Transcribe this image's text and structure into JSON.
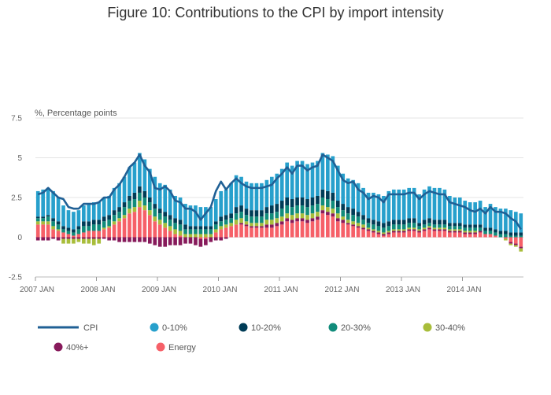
{
  "chart_data": {
    "type": "bar",
    "title": "Figure 10: Contributions to the CPI by import intensity",
    "ylabel": "%, Percentage points",
    "ylim": [
      -2.5,
      7.5
    ],
    "yticks": [
      -2.5,
      0,
      2.5,
      5,
      7.5
    ],
    "ytick_labels": [
      "-2.5",
      "0",
      "2.5",
      "5",
      "7.5"
    ],
    "xtick_labels": [
      "2007 JAN",
      "2008 JAN",
      "2009 JAN",
      "2010 JAN",
      "2011 JAN",
      "2012 JAN",
      "2013 JAN",
      "2014 JAN"
    ],
    "start": "2007 JAN",
    "frequency": "monthly",
    "stacked": true,
    "legend": [
      {
        "name": "CPI",
        "kind": "line",
        "color": "#206095"
      },
      {
        "name": "0-10%",
        "kind": "dot",
        "color": "#27a0cc"
      },
      {
        "name": "10-20%",
        "kind": "dot",
        "color": "#003c57"
      },
      {
        "name": "20-30%",
        "kind": "dot",
        "color": "#118c7b"
      },
      {
        "name": "30-40%",
        "kind": "dot",
        "color": "#a8bd3a"
      },
      {
        "name": "40%+",
        "kind": "dot",
        "color": "#871a5b"
      },
      {
        "name": "Energy",
        "kind": "dot",
        "color": "#f66068"
      }
    ],
    "line": {
      "name": "CPI",
      "color": "#206095",
      "values": [
        2.7,
        2.8,
        3.1,
        2.8,
        2.5,
        2.4,
        1.9,
        1.8,
        1.8,
        2.1,
        2.1,
        2.1,
        2.2,
        2.5,
        2.5,
        3.0,
        3.3,
        3.8,
        4.4,
        4.7,
        5.2,
        4.5,
        4.1,
        3.1,
        3.0,
        3.2,
        2.9,
        2.3,
        2.2,
        1.8,
        1.8,
        1.6,
        1.1,
        1.5,
        1.9,
        2.9,
        3.5,
        3.0,
        3.4,
        3.7,
        3.4,
        3.2,
        3.1,
        3.1,
        3.1,
        3.2,
        3.3,
        3.7,
        4.0,
        4.4,
        4.0,
        4.5,
        4.5,
        4.2,
        4.4,
        4.5,
        5.2,
        5.0,
        4.8,
        4.2,
        3.6,
        3.4,
        3.5,
        3.0,
        2.8,
        2.4,
        2.6,
        2.5,
        2.2,
        2.7,
        2.7,
        2.7,
        2.7,
        2.8,
        2.8,
        2.4,
        2.7,
        2.9,
        2.8,
        2.7,
        2.7,
        2.2,
        2.1,
        2.0,
        1.9,
        1.7,
        1.6,
        1.8,
        1.5,
        1.9,
        1.6,
        1.6,
        1.5,
        1.2,
        1.0,
        0.5
      ]
    },
    "series": [
      {
        "name": "Energy",
        "color": "#f66068",
        "values": [
          0.8,
          0.8,
          0.8,
          0.5,
          0.4,
          0.3,
          0.2,
          0.1,
          0.2,
          0.3,
          0.4,
          0.4,
          0.4,
          0.5,
          0.6,
          0.8,
          1.0,
          1.2,
          1.5,
          1.6,
          1.9,
          1.7,
          1.4,
          1.0,
          0.8,
          0.6,
          0.4,
          0.2,
          0.1,
          0.0,
          0.0,
          0.0,
          -0.1,
          -0.1,
          0.0,
          0.3,
          0.5,
          0.6,
          0.7,
          0.8,
          0.8,
          0.7,
          0.6,
          0.6,
          0.6,
          0.6,
          0.6,
          0.7,
          0.8,
          1.0,
          0.9,
          1.0,
          1.0,
          0.9,
          1.0,
          1.1,
          1.5,
          1.4,
          1.3,
          1.0,
          0.9,
          0.8,
          0.7,
          0.6,
          0.5,
          0.4,
          0.3,
          0.2,
          0.1,
          0.2,
          0.3,
          0.3,
          0.3,
          0.4,
          0.4,
          0.3,
          0.4,
          0.5,
          0.4,
          0.4,
          0.4,
          0.3,
          0.3,
          0.3,
          0.2,
          0.2,
          0.2,
          0.3,
          0.2,
          0.2,
          0.1,
          0.0,
          -0.1,
          -0.3,
          -0.4,
          -0.6
        ]
      },
      {
        "name": "40%+",
        "color": "#871a5b",
        "values": [
          -0.2,
          -0.2,
          -0.2,
          -0.1,
          -0.2,
          -0.1,
          -0.1,
          -0.1,
          -0.1,
          -0.1,
          -0.1,
          -0.1,
          -0.1,
          -0.1,
          -0.2,
          -0.2,
          -0.3,
          -0.3,
          -0.3,
          -0.3,
          -0.3,
          -0.3,
          -0.4,
          -0.5,
          -0.6,
          -0.6,
          -0.5,
          -0.5,
          -0.5,
          -0.4,
          -0.4,
          -0.5,
          -0.5,
          -0.4,
          -0.3,
          -0.2,
          -0.2,
          -0.1,
          0.0,
          0.0,
          0.1,
          0.1,
          0.1,
          0.1,
          0.1,
          0.2,
          0.2,
          0.2,
          0.2,
          0.2,
          0.2,
          0.2,
          0.2,
          0.2,
          0.2,
          0.2,
          0.2,
          0.2,
          0.2,
          0.2,
          0.2,
          0.1,
          0.1,
          0.1,
          0.1,
          0.1,
          0.1,
          0.1,
          0.1,
          0.1,
          0.1,
          0.1,
          0.1,
          0.1,
          0.1,
          0.1,
          0.1,
          0.1,
          0.1,
          0.1,
          0.1,
          0.1,
          0.1,
          0.1,
          0.1,
          0.1,
          0.1,
          0.1,
          0.0,
          0.0,
          0.0,
          0.0,
          0.0,
          -0.1,
          -0.1,
          -0.1
        ]
      },
      {
        "name": "30-40%",
        "color": "#a8bd3a",
        "values": [
          0.2,
          0.2,
          0.2,
          0.2,
          0.1,
          -0.3,
          -0.3,
          -0.3,
          -0.2,
          -0.3,
          -0.3,
          -0.4,
          -0.3,
          0.1,
          0.1,
          0.2,
          0.2,
          0.2,
          0.3,
          0.3,
          0.4,
          0.3,
          0.3,
          0.3,
          0.3,
          0.3,
          0.3,
          0.3,
          0.3,
          0.2,
          0.2,
          0.2,
          0.2,
          0.2,
          0.2,
          0.2,
          0.2,
          0.2,
          0.2,
          0.3,
          0.3,
          0.2,
          0.2,
          0.2,
          0.2,
          0.3,
          0.3,
          0.3,
          0.3,
          0.3,
          0.3,
          0.3,
          0.3,
          0.3,
          0.3,
          0.3,
          0.3,
          0.3,
          0.3,
          0.3,
          0.2,
          0.2,
          0.2,
          0.2,
          0.2,
          0.1,
          0.1,
          0.1,
          0.1,
          0.1,
          0.1,
          0.1,
          0.1,
          0.1,
          0.1,
          0.1,
          0.1,
          0.1,
          0.1,
          0.1,
          0.1,
          0.1,
          0.1,
          0.1,
          0.1,
          0.1,
          0.1,
          0.0,
          0.0,
          0.0,
          0.0,
          0.0,
          -0.1,
          -0.1,
          -0.1,
          -0.2
        ]
      },
      {
        "name": "20-30%",
        "color": "#118c7b",
        "values": [
          0.2,
          0.2,
          0.3,
          0.3,
          0.3,
          0.2,
          0.2,
          0.2,
          0.3,
          0.4,
          0.3,
          0.4,
          0.4,
          0.4,
          0.4,
          0.4,
          0.4,
          0.5,
          0.5,
          0.5,
          0.5,
          0.5,
          0.5,
          0.5,
          0.4,
          0.4,
          0.4,
          0.4,
          0.4,
          0.3,
          0.3,
          0.3,
          0.3,
          0.3,
          0.3,
          0.3,
          0.3,
          0.3,
          0.3,
          0.4,
          0.4,
          0.4,
          0.4,
          0.4,
          0.4,
          0.4,
          0.4,
          0.4,
          0.5,
          0.5,
          0.5,
          0.5,
          0.5,
          0.5,
          0.5,
          0.5,
          0.5,
          0.5,
          0.5,
          0.4,
          0.4,
          0.4,
          0.4,
          0.4,
          0.3,
          0.3,
          0.3,
          0.3,
          0.3,
          0.3,
          0.3,
          0.3,
          0.3,
          0.3,
          0.3,
          0.2,
          0.2,
          0.2,
          0.2,
          0.2,
          0.2,
          0.2,
          0.2,
          0.2,
          0.2,
          0.2,
          0.2,
          0.2,
          0.2,
          0.2,
          0.2,
          0.2,
          0.2,
          0.1,
          0.1,
          0.1
        ]
      },
      {
        "name": "10-20%",
        "color": "#003c57",
        "values": [
          0.1,
          0.1,
          0.1,
          0.2,
          0.2,
          0.2,
          0.2,
          0.2,
          0.2,
          0.3,
          0.3,
          0.3,
          0.3,
          0.3,
          0.3,
          0.3,
          0.3,
          0.3,
          0.3,
          0.4,
          0.4,
          0.4,
          0.3,
          0.3,
          0.3,
          0.3,
          0.3,
          0.3,
          0.3,
          0.3,
          0.2,
          0.2,
          0.2,
          0.2,
          0.2,
          0.2,
          0.3,
          0.3,
          0.3,
          0.4,
          0.4,
          0.4,
          0.4,
          0.4,
          0.4,
          0.4,
          0.5,
          0.5,
          0.5,
          0.5,
          0.5,
          0.5,
          0.5,
          0.5,
          0.5,
          0.5,
          0.5,
          0.5,
          0.5,
          0.4,
          0.4,
          0.4,
          0.4,
          0.3,
          0.3,
          0.3,
          0.3,
          0.3,
          0.3,
          0.3,
          0.3,
          0.3,
          0.3,
          0.3,
          0.3,
          0.2,
          0.3,
          0.3,
          0.3,
          0.3,
          0.3,
          0.2,
          0.2,
          0.2,
          0.2,
          0.2,
          0.2,
          0.2,
          0.2,
          0.2,
          0.2,
          0.2,
          0.2,
          0.2,
          0.2,
          0.2
        ]
      },
      {
        "name": "0-10%",
        "color": "#27a0cc",
        "values": [
          1.6,
          1.7,
          1.7,
          1.7,
          1.5,
          1.3,
          1.1,
          1.1,
          1.0,
          1.0,
          1.1,
          1.1,
          1.1,
          1.2,
          1.2,
          1.4,
          1.5,
          1.6,
          1.8,
          1.9,
          2.1,
          2.0,
          1.8,
          1.7,
          1.6,
          1.7,
          1.6,
          1.4,
          1.4,
          1.3,
          1.3,
          1.3,
          1.2,
          1.2,
          1.2,
          1.4,
          1.6,
          1.6,
          1.9,
          2.0,
          1.8,
          1.7,
          1.7,
          1.7,
          1.7,
          1.7,
          1.8,
          1.9,
          2.0,
          2.2,
          2.1,
          2.3,
          2.3,
          2.2,
          2.2,
          2.2,
          2.3,
          2.3,
          2.3,
          2.2,
          1.9,
          1.8,
          1.8,
          1.8,
          1.7,
          1.6,
          1.7,
          1.7,
          1.7,
          1.9,
          1.9,
          1.9,
          1.9,
          1.9,
          1.9,
          1.8,
          1.9,
          2.0,
          2.0,
          2.0,
          1.9,
          1.7,
          1.6,
          1.6,
          1.5,
          1.4,
          1.4,
          1.5,
          1.3,
          1.5,
          1.4,
          1.4,
          1.4,
          1.4,
          1.3,
          1.2
        ]
      }
    ]
  }
}
